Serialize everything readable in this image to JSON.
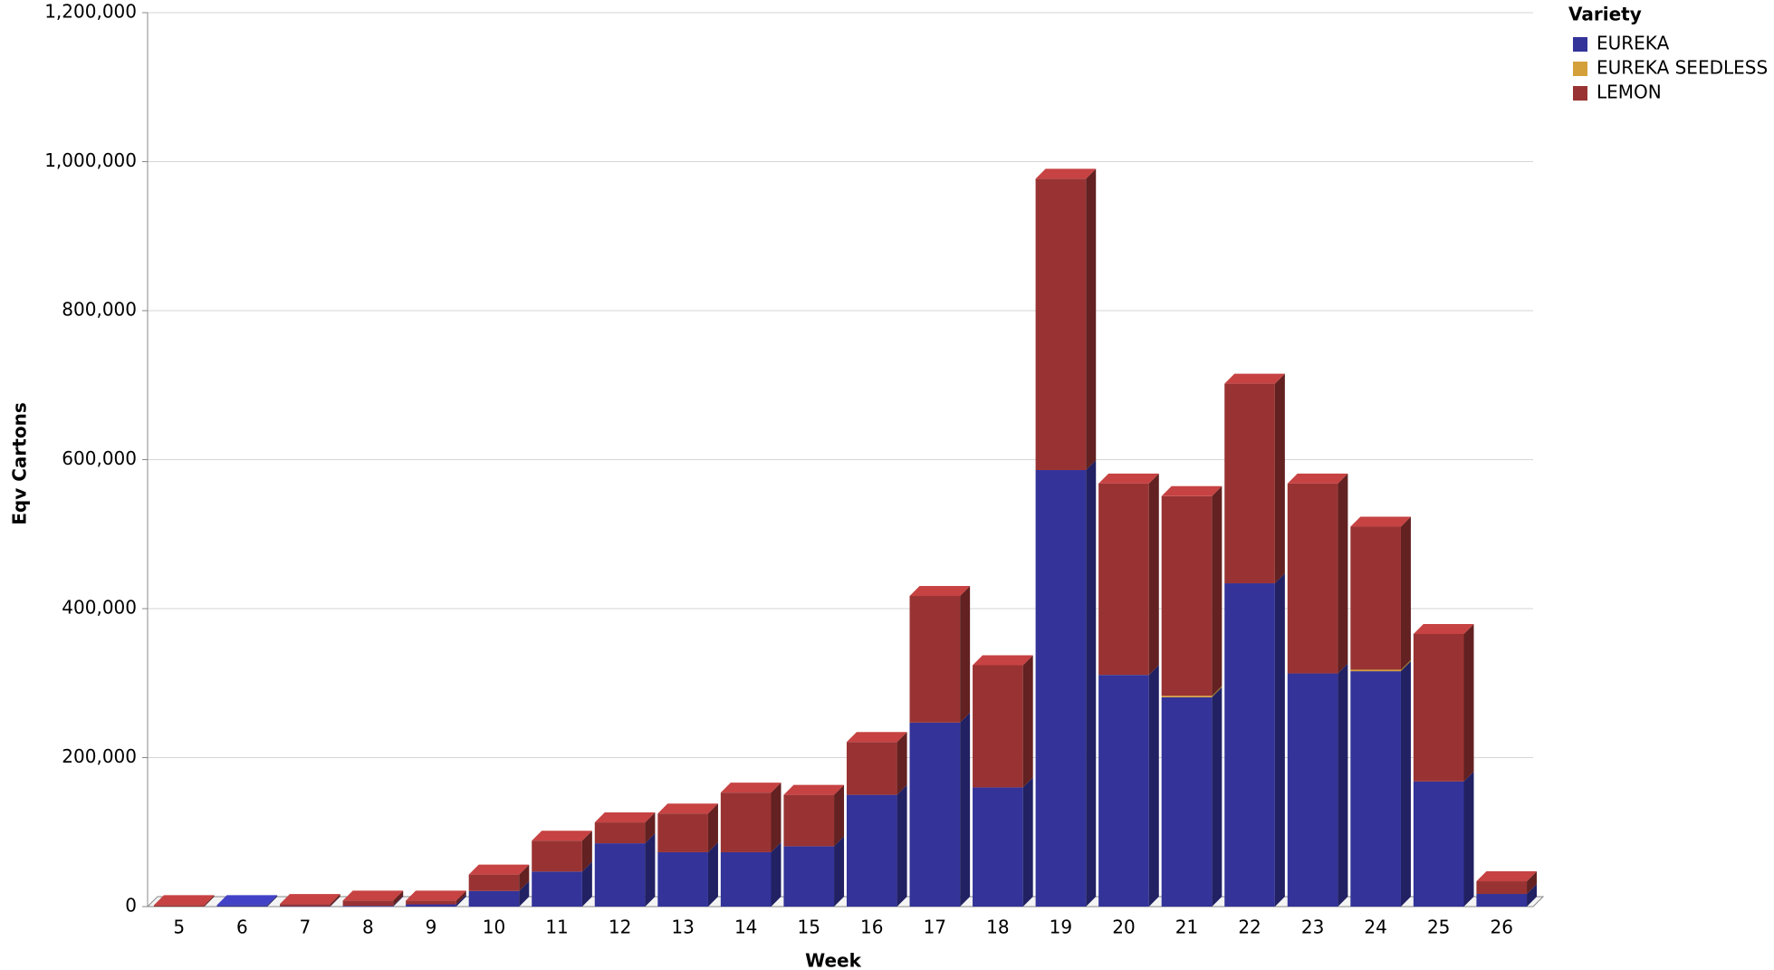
{
  "chart_data": {
    "type": "stacked_bar_3d",
    "x_label": "Week",
    "y_label": "Eqv Cartons",
    "legend_title": "Variety",
    "legend_position": "top-right",
    "grid": true,
    "categories": [
      "5",
      "6",
      "7",
      "8",
      "9",
      "10",
      "11",
      "12",
      "13",
      "14",
      "15",
      "16",
      "17",
      "18",
      "19",
      "20",
      "21",
      "22",
      "23",
      "24",
      "25",
      "26"
    ],
    "series": [
      {
        "name": "EUREKA",
        "color": "#333399",
        "values": [
          0,
          2000,
          500,
          1000,
          3000,
          21000,
          47000,
          85000,
          73000,
          73000,
          81000,
          150000,
          247000,
          160000,
          586000,
          311000,
          281000,
          434000,
          313000,
          316000,
          168000,
          17000
        ]
      },
      {
        "name": "EUREKA SEEDLESS",
        "color": "#d4a03a",
        "values": [
          0,
          0,
          0,
          0,
          0,
          0,
          0,
          0,
          0,
          0,
          0,
          0,
          0,
          0,
          0,
          0,
          2000,
          0,
          0,
          2000,
          0,
          0
        ]
      },
      {
        "name": "LEMON",
        "color": "#993333",
        "values": [
          2000,
          0,
          3000,
          7000,
          5000,
          22000,
          41500,
          28000,
          52000,
          80000,
          69000,
          71000,
          170000,
          164000,
          391000,
          257000,
          268000,
          268000,
          255000,
          192000,
          198000,
          17000
        ]
      }
    ],
    "ylim": [
      0,
      1200000
    ],
    "yticks": [
      0,
      {
        "value": 200000,
        "label": "200,000"
      },
      {
        "value": 400000,
        "label": "400,000"
      },
      {
        "value": 600000,
        "label": "600,000"
      },
      {
        "value": 800000,
        "label": "800,000"
      },
      {
        "value": 1000000,
        "label": "1,000,000"
      },
      {
        "value": 1200000,
        "label": "1,200,000"
      }
    ]
  }
}
